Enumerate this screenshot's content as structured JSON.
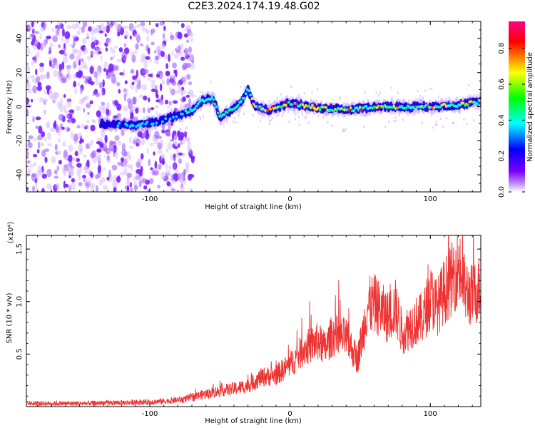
{
  "title": "C2E3.2024.174.19.48.G02",
  "chart_data": [
    {
      "type": "heatmap",
      "xlabel": "Height of straight line (km)",
      "ylabel": "Frequency (Hz)",
      "xlim": [
        -188,
        136
      ],
      "ylim": [
        -50,
        50
      ],
      "xticks": [
        -100,
        0,
        100
      ],
      "yticks": [
        -40,
        -20,
        0,
        20,
        40
      ],
      "colorbar": {
        "label": "Normalized spectral amplitude",
        "range": [
          0,
          0.95
        ],
        "ticks": [
          0.0,
          0.2,
          0.4,
          0.6,
          0.8
        ],
        "ticklabels": [
          "0.0",
          "0.2",
          "0.4",
          "0.6",
          "0.8"
        ],
        "colors": [
          "#ffffff",
          "#7b00ff",
          "#0000ff",
          "#00ffff",
          "#00ff00",
          "#ffff00",
          "#ff0000",
          "#ff0088"
        ]
      },
      "noise_region_x": [
        -188,
        -69
      ],
      "ridge": [
        {
          "x": -130,
          "y": -10
        },
        {
          "x": -110,
          "y": -11
        },
        {
          "x": -95,
          "y": -9
        },
        {
          "x": -80,
          "y": -5
        },
        {
          "x": -70,
          "y": -2
        },
        {
          "x": -62,
          "y": 4
        },
        {
          "x": -55,
          "y": 5
        },
        {
          "x": -50,
          "y": -6
        },
        {
          "x": -42,
          "y": -2
        },
        {
          "x": -35,
          "y": 2
        },
        {
          "x": -30,
          "y": 10
        },
        {
          "x": -25,
          "y": 0
        },
        {
          "x": -15,
          "y": -2
        },
        {
          "x": 0,
          "y": 2
        },
        {
          "x": 20,
          "y": -1
        },
        {
          "x": 40,
          "y": -2
        },
        {
          "x": 60,
          "y": 0
        },
        {
          "x": 80,
          "y": 0
        },
        {
          "x": 100,
          "y": 0
        },
        {
          "x": 120,
          "y": 1
        },
        {
          "x": 136,
          "y": 3
        }
      ]
    },
    {
      "type": "line",
      "xlabel": "Height of straight line (km)",
      "ylabel": "SNR (10 * v/v)",
      "yscale_label": "(x10⁴)",
      "xlim": [
        -188,
        136
      ],
      "ylim": [
        0,
        1.63
      ],
      "xticks": [
        -100,
        0,
        100
      ],
      "yticks": [
        0.5,
        1.0,
        1.5
      ],
      "yticklabels": [
        "0.5",
        "1.0",
        "1.5"
      ],
      "series": [
        {
          "color": "#ee3333",
          "x": [
            -188,
            -150,
            -110,
            -90,
            -75,
            -70,
            -60,
            -50,
            -40,
            -30,
            -20,
            -10,
            0,
            10,
            20,
            25,
            30,
            40,
            48,
            52,
            55,
            60,
            70,
            75,
            80,
            88,
            95,
            100,
            105,
            110,
            115,
            120,
            125,
            130,
            136
          ],
          "y": [
            0.03,
            0.03,
            0.04,
            0.05,
            0.07,
            0.09,
            0.12,
            0.15,
            0.17,
            0.2,
            0.28,
            0.3,
            0.4,
            0.55,
            0.62,
            0.55,
            0.68,
            0.65,
            0.45,
            0.7,
            0.95,
            0.98,
            0.85,
            0.95,
            0.7,
            0.8,
            0.85,
            1.05,
            0.95,
            1.1,
            1.2,
            1.35,
            1.1,
            1.05,
            1.15
          ]
        }
      ]
    }
  ]
}
